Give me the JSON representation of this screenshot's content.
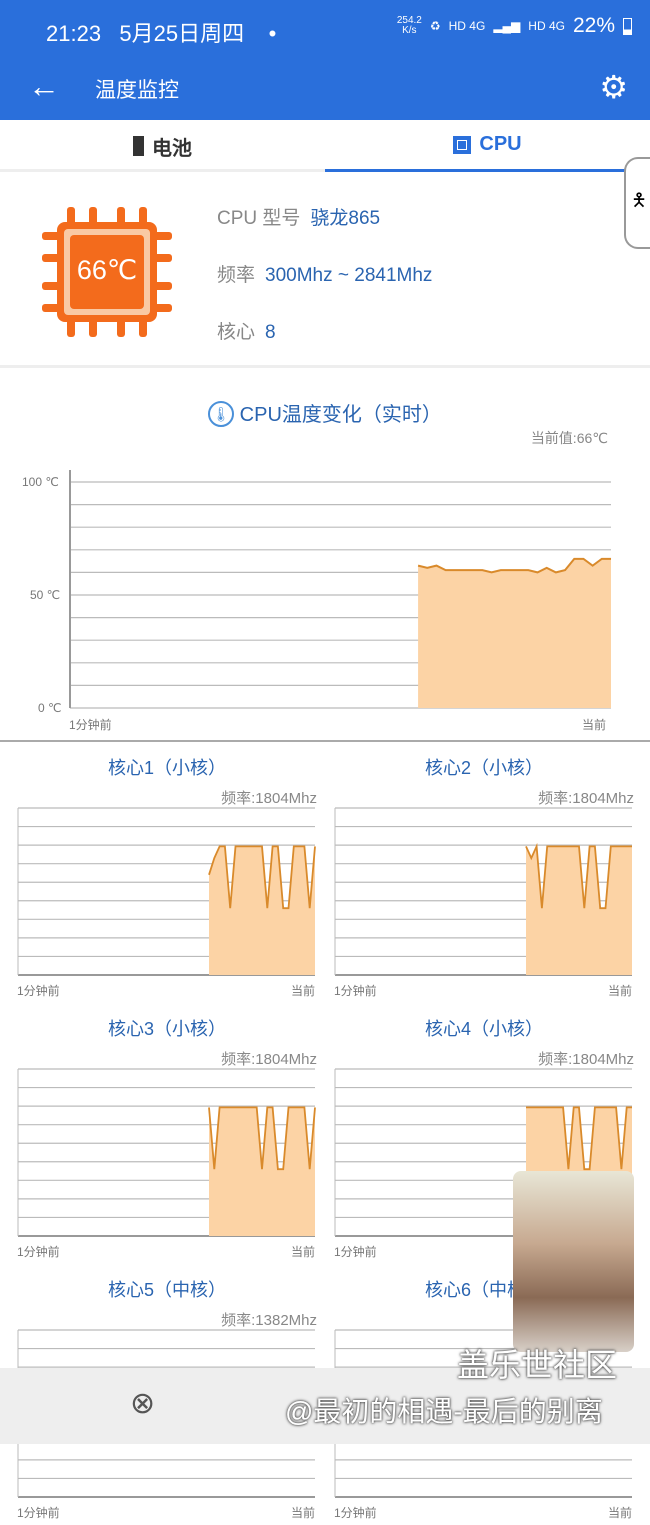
{
  "status": {
    "time": "21:23",
    "date": "5月25日周四",
    "dot": "•",
    "speed": "254.2",
    "speed_unit": "K/s",
    "net1": "HD 4G",
    "net2": "HD 4G",
    "battery": "22%"
  },
  "toolbar": {
    "title": "温度监控",
    "back_icon": "arrow-left-icon",
    "settings_icon": "gear-icon"
  },
  "tabs": [
    {
      "label": "电池",
      "icon": "battery-icon"
    },
    {
      "label": "CPU",
      "icon": "chip-icon",
      "active": true
    }
  ],
  "cpu": {
    "temp": "66℃",
    "model_label": "CPU 型号",
    "model": "骁龙865",
    "freq_label": "频率",
    "freq": "300Mhz ~ 2841Mhz",
    "cores_label": "核心",
    "cores": "8"
  },
  "temp_chart": {
    "title": "CPU温度变化（实时）",
    "current": "当前值:66℃",
    "x_start": "1分钟前",
    "x_end": "当前",
    "y_ticks": [
      "100 ℃",
      "50 ℃",
      "0 ℃"
    ]
  },
  "chart_data": [
    {
      "type": "area",
      "title": "CPU温度变化（实时）",
      "ylim": [
        0,
        100
      ],
      "yticks": [
        "100 ℃",
        "50 ℃",
        "0 ℃"
      ],
      "xlabels": [
        "1分钟前",
        "当前"
      ],
      "grid": true,
      "total_points": 60,
      "values": [
        63,
        62,
        63,
        61,
        61,
        61,
        61,
        61,
        60,
        61,
        61,
        61,
        61,
        60,
        62,
        60,
        61,
        66,
        66,
        63,
        66,
        66
      ],
      "color": "#f5a35a"
    }
  ],
  "cores": [
    {
      "title": "核心1（小核）",
      "freq": "频率:1804Mhz",
      "levels": [
        0.6,
        0.7,
        0.77,
        0.77,
        0.4,
        0.77,
        0.77,
        0.77,
        0.77,
        0.77,
        0.77,
        0.4,
        0.77,
        0.77,
        0.4,
        0.4,
        0.77,
        0.77,
        0.77,
        0.4,
        0.77
      ]
    },
    {
      "title": "核心2（小核）",
      "freq": "频率:1804Mhz",
      "levels": [
        0.77,
        0.7,
        0.77,
        0.4,
        0.77,
        0.77,
        0.77,
        0.77,
        0.77,
        0.77,
        0.77,
        0.4,
        0.77,
        0.77,
        0.4,
        0.4,
        0.77,
        0.77,
        0.77,
        0.77,
        0.77
      ]
    },
    {
      "title": "核心3（小核）",
      "freq": "频率:1804Mhz",
      "levels": [
        0.77,
        0.4,
        0.77,
        0.77,
        0.77,
        0.77,
        0.77,
        0.77,
        0.77,
        0.77,
        0.4,
        0.77,
        0.77,
        0.4,
        0.4,
        0.77,
        0.77,
        0.77,
        0.77,
        0.4,
        0.77
      ]
    },
    {
      "title": "核心4（小核）",
      "freq": "频率:1804Mhz",
      "levels": [
        0.77,
        0.77,
        0.77,
        0.77,
        0.77,
        0.77,
        0.77,
        0.77,
        0.4,
        0.77,
        0.77,
        0.4,
        0.4,
        0.77,
        0.77,
        0.77,
        0.77,
        0.77,
        0.4,
        0.77,
        0.77
      ]
    },
    {
      "title": "核心5（中核）",
      "freq": "频率:1382Mhz",
      "levels": []
    },
    {
      "title": "核心6（中核）",
      "freq": "",
      "levels": []
    }
  ],
  "core_axis": {
    "x_start": "1分钟前",
    "x_end": "当前"
  },
  "bottom": {
    "close_icon": "circle-x-icon"
  },
  "watermark": {
    "brand": "盖乐世社区",
    "user": "@最初的相遇-最后的别离"
  }
}
